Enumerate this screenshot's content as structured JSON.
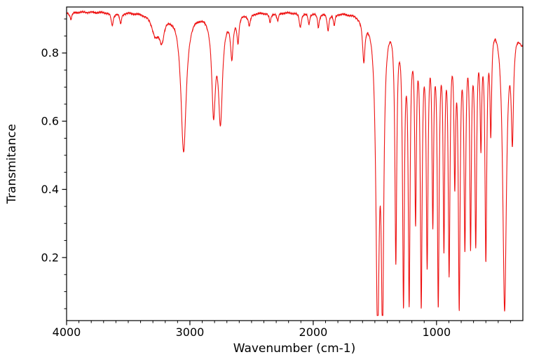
{
  "chart_data": {
    "type": "line",
    "title": "",
    "xlabel": "Wavenumber (cm-1)",
    "ylabel": "Transmitance",
    "x_ticks": [
      4000,
      3000,
      2000,
      1000
    ],
    "x_minor_tick_interval": 100,
    "y_ticks": [
      0.2,
      0.4,
      0.6,
      0.8
    ],
    "y_minor_tick_interval": 0.05,
    "xlim": [
      4000,
      300
    ],
    "ylim": [
      0.015,
      0.935
    ],
    "x_axis_reversed": true,
    "grid": false,
    "legend": "none",
    "line_color": "#ee1111",
    "axis_color": "#000000",
    "background_color": "#ffffff",
    "baseline_transmittance": 0.921,
    "noise_amplitude": 0.003,
    "floor_transmittance": 0.03,
    "series": [
      {
        "name": "ir-transmittance-spectrum",
        "peaks": [
          {
            "center": 3965,
            "min": 0.9,
            "hwhm": 10
          },
          {
            "center": 3630,
            "min": 0.882,
            "hwhm": 10
          },
          {
            "center": 3562,
            "min": 0.888,
            "hwhm": 9
          },
          {
            "center": 3280,
            "min": 0.862,
            "hwhm": 35
          },
          {
            "center": 3228,
            "min": 0.855,
            "hwhm": 24
          },
          {
            "center": 3051,
            "min": 0.515,
            "hwhm": 26
          },
          {
            "center": 2808,
            "min": 0.645,
            "hwhm": 18
          },
          {
            "center": 2752,
            "min": 0.618,
            "hwhm": 20
          },
          {
            "center": 2660,
            "min": 0.8,
            "hwhm": 13
          },
          {
            "center": 2610,
            "min": 0.845,
            "hwhm": 10
          },
          {
            "center": 2518,
            "min": 0.886,
            "hwhm": 11
          },
          {
            "center": 2350,
            "min": 0.893,
            "hwhm": 9
          },
          {
            "center": 2288,
            "min": 0.896,
            "hwhm": 8
          },
          {
            "center": 2105,
            "min": 0.879,
            "hwhm": 10
          },
          {
            "center": 2035,
            "min": 0.888,
            "hwhm": 8
          },
          {
            "center": 1958,
            "min": 0.88,
            "hwhm": 9
          },
          {
            "center": 1880,
            "min": 0.871,
            "hwhm": 9
          },
          {
            "center": 1830,
            "min": 0.885,
            "hwhm": 8
          },
          {
            "center": 1590,
            "min": 0.798,
            "hwhm": 12
          },
          {
            "center": 1478,
            "min": 0.035,
            "hwhm": 16
          },
          {
            "center": 1438,
            "min": 0.095,
            "hwhm": 12
          },
          {
            "center": 1330,
            "min": 0.23,
            "hwhm": 9
          },
          {
            "center": 1268,
            "min": 0.115,
            "hwhm": 9
          },
          {
            "center": 1222,
            "min": 0.12,
            "hwhm": 9
          },
          {
            "center": 1170,
            "min": 0.37,
            "hwhm": 8
          },
          {
            "center": 1124,
            "min": 0.115,
            "hwhm": 9
          },
          {
            "center": 1076,
            "min": 0.235,
            "hwhm": 9
          },
          {
            "center": 1030,
            "min": 0.37,
            "hwhm": 8
          },
          {
            "center": 986,
            "min": 0.115,
            "hwhm": 9
          },
          {
            "center": 940,
            "min": 0.3,
            "hwhm": 8
          },
          {
            "center": 898,
            "min": 0.21,
            "hwhm": 9
          },
          {
            "center": 852,
            "min": 0.495,
            "hwhm": 8
          },
          {
            "center": 816,
            "min": 0.115,
            "hwhm": 9
          },
          {
            "center": 770,
            "min": 0.29,
            "hwhm": 9
          },
          {
            "center": 724,
            "min": 0.3,
            "hwhm": 8
          },
          {
            "center": 682,
            "min": 0.29,
            "hwhm": 9
          },
          {
            "center": 640,
            "min": 0.595,
            "hwhm": 8
          },
          {
            "center": 600,
            "min": 0.24,
            "hwhm": 9
          },
          {
            "center": 560,
            "min": 0.62,
            "hwhm": 8
          },
          {
            "center": 448,
            "min": 0.068,
            "hwhm": 18
          },
          {
            "center": 385,
            "min": 0.61,
            "hwhm": 11
          },
          {
            "center": 300,
            "min": 0.84,
            "hwhm": 45
          }
        ]
      }
    ]
  }
}
